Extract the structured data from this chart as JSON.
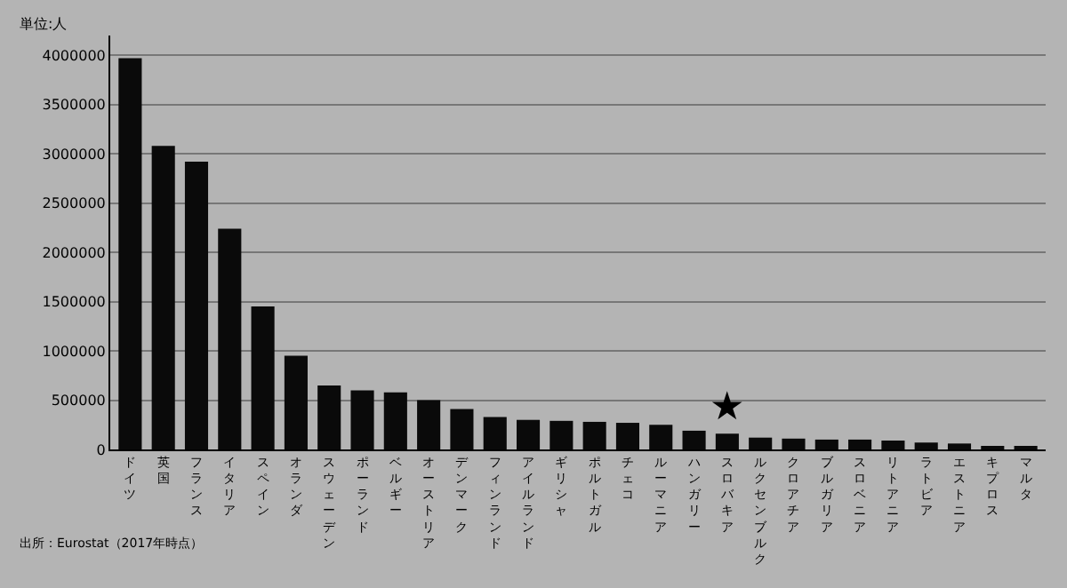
{
  "chart_data": {
    "type": "bar",
    "ylabel": "単位:人",
    "categories": [
      "ドイツ",
      "英国",
      "フランス",
      "イタリア",
      "スペイン",
      "オランダ",
      "スウェーデン",
      "ポーランド",
      "ベルギー",
      "オーストリア",
      "デンマーク",
      "フィンランド",
      "アイルランド",
      "ギリシャ",
      "ポルトガル",
      "チェコ",
      "ルーマニア",
      "ハンガリー",
      "スロバキア",
      "ルクセンブルク",
      "クロアチア",
      "ブルガリア",
      "スロベニア",
      "リトアニア",
      "ラトビア",
      "エストニア",
      "キプロス",
      "マルタ"
    ],
    "values": [
      3970000,
      3080000,
      2920000,
      2240000,
      1450000,
      950000,
      650000,
      600000,
      580000,
      500000,
      410000,
      330000,
      300000,
      290000,
      280000,
      270000,
      250000,
      190000,
      160000,
      120000,
      110000,
      100000,
      100000,
      90000,
      70000,
      60000,
      30000,
      20000
    ],
    "color": "#0a0a0a",
    "ylim": [
      0,
      4200000
    ],
    "yticks": [
      0,
      500000,
      1000000,
      1500000,
      2000000,
      2500000,
      3000000,
      3500000,
      4000000
    ],
    "grid": "y",
    "annotations": [
      {
        "text": "★",
        "x": "スロバキア",
        "y": 160000
      },
      "出所：Eurostat（2017年時点）"
    ]
  }
}
